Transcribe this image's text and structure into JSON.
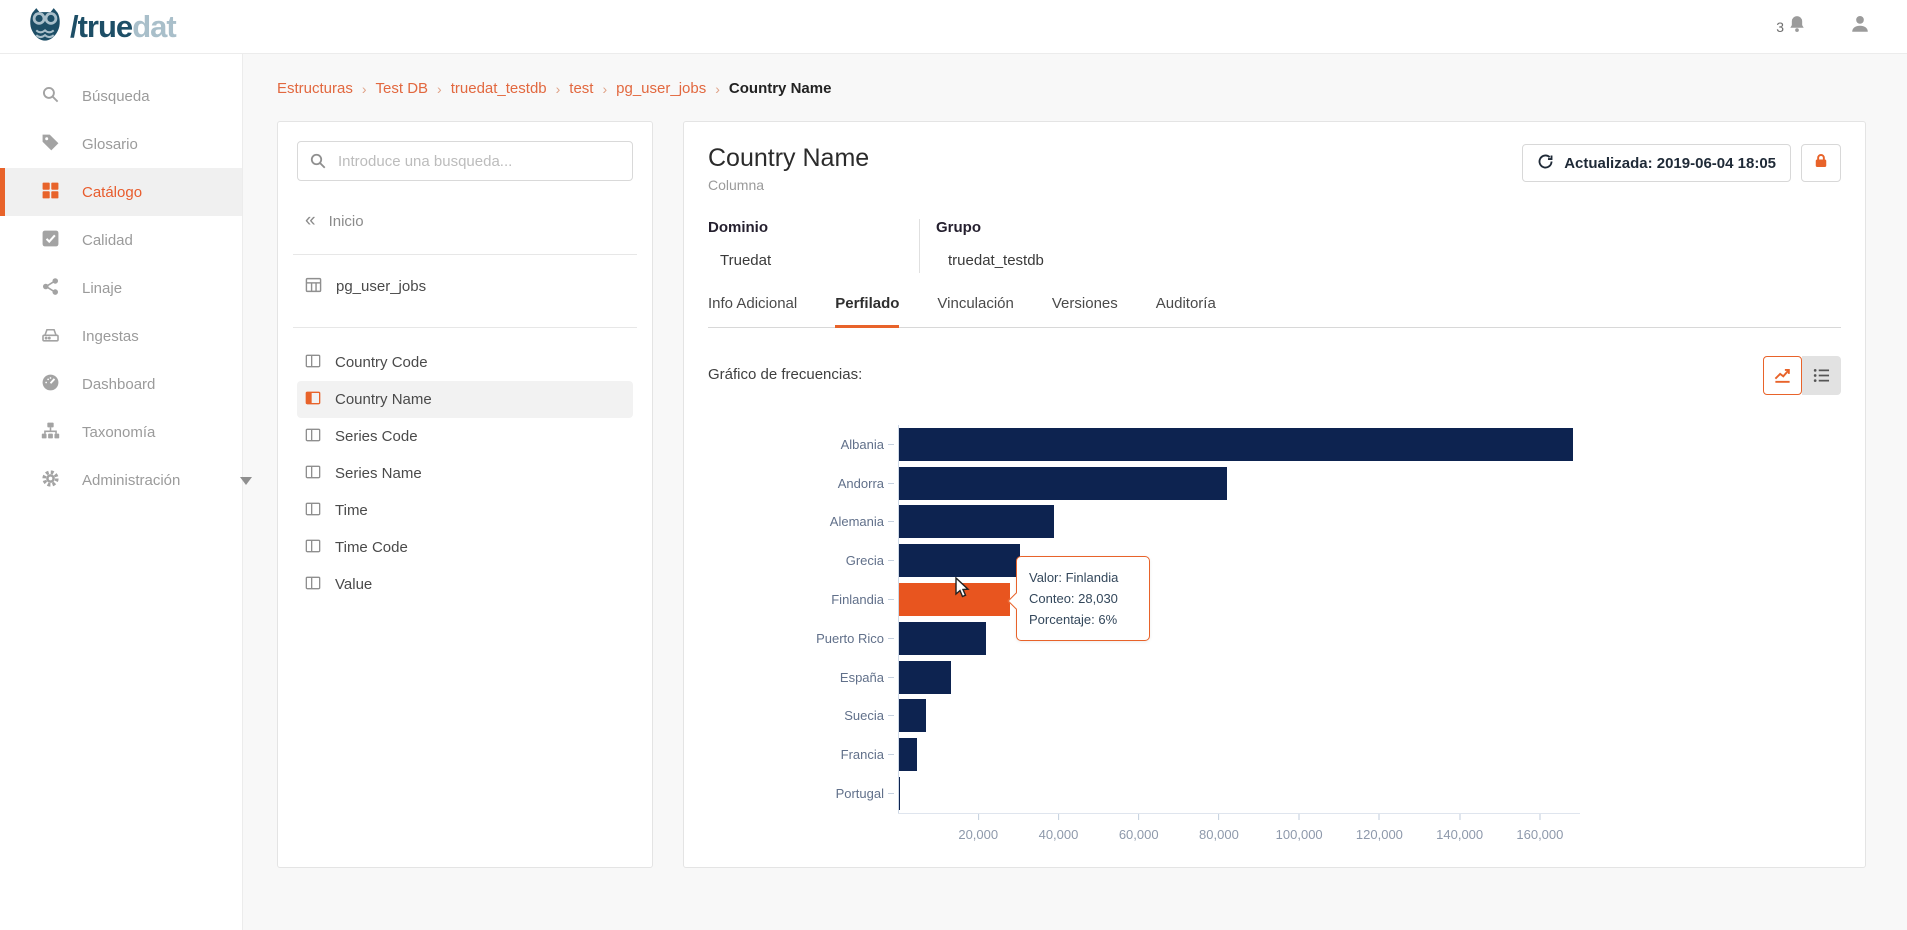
{
  "topbar": {
    "brand_slash_true": "/true",
    "brand_dat": "dat",
    "notification_count": "3"
  },
  "sidebar": {
    "items": [
      {
        "label": "Búsqueda"
      },
      {
        "label": "Glosario"
      },
      {
        "label": "Catálogo"
      },
      {
        "label": "Calidad"
      },
      {
        "label": "Linaje"
      },
      {
        "label": "Ingestas"
      },
      {
        "label": "Dashboard"
      },
      {
        "label": "Taxonomía"
      },
      {
        "label": "Administración"
      }
    ],
    "active_item": "Catálogo"
  },
  "breadcrumb": {
    "separator": "›",
    "items": [
      {
        "label": "Estructuras"
      },
      {
        "label": "Test DB"
      },
      {
        "label": "truedat_testdb"
      },
      {
        "label": "test"
      },
      {
        "label": "pg_user_jobs"
      }
    ],
    "current": "Country Name"
  },
  "left_panel": {
    "search_placeholder": "Introduce una busqueda...",
    "home_label": "Inicio",
    "home_chevrons": "«",
    "table_name": "pg_user_jobs",
    "columns": [
      {
        "label": "Country Code"
      },
      {
        "label": "Country Name"
      },
      {
        "label": "Series Code"
      },
      {
        "label": "Series Name"
      },
      {
        "label": "Time"
      },
      {
        "label": "Time Code"
      },
      {
        "label": "Value"
      }
    ],
    "selected_column": "Country Name"
  },
  "main": {
    "title": "Country Name",
    "subtitle": "Columna",
    "updated_button_label": "Actualizada: 2019-06-04 18:05",
    "domain_label": "Dominio",
    "domain_value": "Truedat",
    "group_label": "Grupo",
    "group_value": "truedat_testdb",
    "tabs": [
      {
        "label": "Info Adicional"
      },
      {
        "label": "Perfilado"
      },
      {
        "label": "Vinculación"
      },
      {
        "label": "Versiones"
      },
      {
        "label": "Auditoría"
      }
    ],
    "active_tab": "Perfilado",
    "chart_section_label": "Gráfico de frecuencias:"
  },
  "tooltip": {
    "value_line": "Valor: Finlandia",
    "count_line": "Conteo: 28,030",
    "percent_line": "Porcentaje: 6%"
  },
  "chart_data": {
    "type": "bar",
    "orientation": "horizontal",
    "title": "Gráfico de frecuencias:",
    "categories": [
      "Albania",
      "Andorra",
      "Alemania",
      "Grecia",
      "Finlandia",
      "Puerto Rico",
      "España",
      "Suecia",
      "Francia",
      "Portugal"
    ],
    "values": [
      168200,
      82000,
      39000,
      30400,
      28030,
      21900,
      13300,
      6900,
      4700,
      500
    ],
    "highlight": {
      "category": "Finlandia",
      "count": 28030,
      "percent": "6%"
    },
    "xtick_values": [
      20000,
      40000,
      60000,
      80000,
      100000,
      120000,
      140000,
      160000
    ],
    "xtick_labels": [
      "20,000",
      "40,000",
      "60,000",
      "80,000",
      "100,000",
      "120,000",
      "140,000",
      "160,000"
    ],
    "xlim": [
      0,
      170000
    ],
    "grid": false,
    "legend": false,
    "bar_color": "#0d2350",
    "highlight_color": "#e8551f"
  },
  "colors": {
    "accent": "#e8632a",
    "bar": "#0d2350",
    "bar_highlight": "#e8551f",
    "brand_dark": "#1d4e66",
    "brand_light": "#a9bfca"
  }
}
